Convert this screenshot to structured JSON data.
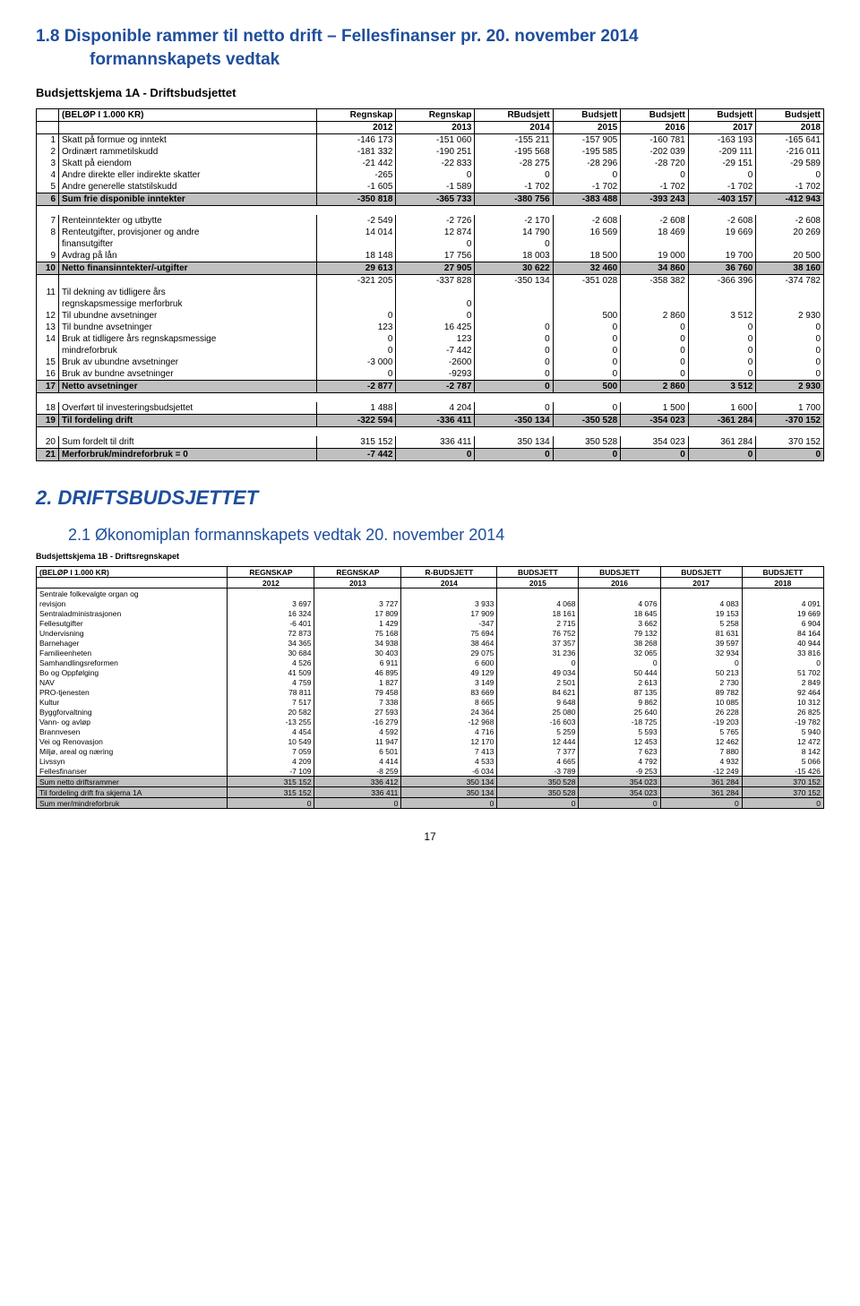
{
  "section1": {
    "title_line1": "1.8 Disponible rammer til netto drift – Fellesfinanser pr. 20. november 2014",
    "title_line2": "formannskapets vedtak",
    "subhead": "Budsjettskjema 1A - Driftsbudsjettet",
    "unit_note": "(BELØP I 1.000 KR)",
    "col_headers_top": [
      "Regnskap",
      "Regnskap",
      "RBudsjett",
      "Budsjett",
      "Budsjett",
      "Budsjett",
      "Budsjett"
    ],
    "col_headers_years": [
      "2012",
      "2013",
      "2014",
      "2015",
      "2016",
      "2017",
      "2018"
    ],
    "rows_a": [
      {
        "n": "1",
        "label": "Skatt på formue og inntekt",
        "v": [
          "-146 173",
          "-151 060",
          "-155 211",
          "-157 905",
          "-160 781",
          "-163 193",
          "-165 641"
        ]
      },
      {
        "n": "2",
        "label": "Ordinært rammetilskudd",
        "v": [
          "-181 332",
          "-190 251",
          "-195 568",
          "-195 585",
          "-202 039",
          "-209 111",
          "-216 011"
        ]
      },
      {
        "n": "3",
        "label": "Skatt på eiendom",
        "v": [
          "-21 442",
          "-22 833",
          "-28 275",
          "-28 296",
          "-28 720",
          "-29 151",
          "-29 589"
        ]
      },
      {
        "n": "4",
        "label": "Andre direkte eller indirekte skatter",
        "v": [
          "-265",
          "0",
          "0",
          "0",
          "0",
          "0",
          "0"
        ]
      },
      {
        "n": "5",
        "label": "Andre generelle statstilskudd",
        "v": [
          "-1 605",
          "-1 589",
          "-1 702",
          "-1 702",
          "-1 702",
          "-1 702",
          "-1 702"
        ]
      }
    ],
    "row_sum6": {
      "n": "6",
      "label": "Sum frie disponible inntekter",
      "v": [
        "-350 818",
        "-365 733",
        "-380 756",
        "-383 488",
        "-393 243",
        "-403 157",
        "-412 943"
      ]
    },
    "rows_b": [
      {
        "n": "7",
        "label": "Renteinntekter og utbytte",
        "v": [
          "-2 549",
          "-2 726",
          "-2 170",
          "-2 608",
          "-2 608",
          "-2 608",
          "-2 608"
        ]
      },
      {
        "n": "8",
        "label": "Renteutgifter, provisjoner og andre",
        "v": [
          "14 014",
          "12 874",
          "14 790",
          "16 569",
          "18 469",
          "19 669",
          "20 269"
        ]
      },
      {
        "n": "",
        "label": "finansutgifter",
        "v": [
          "",
          "0",
          "0",
          "",
          "",
          "",
          ""
        ]
      },
      {
        "n": "9",
        "label": "Avdrag på lån",
        "v": [
          "18 148",
          "17 756",
          "18 003",
          "18 500",
          "19 000",
          "19 700",
          "20 500"
        ]
      }
    ],
    "row_sum10": {
      "n": "10",
      "label": "Netto finansinntekter/-utgifter",
      "v": [
        "29 613",
        "27 905",
        "30 622",
        "32 460",
        "34 860",
        "36 760",
        "38 160"
      ]
    },
    "row_extra": {
      "v": [
        "-321 205",
        "-337 828",
        "-350 134",
        "-351 028",
        "-358 382",
        "-366 396",
        "-374 782"
      ]
    },
    "rows_c": [
      {
        "n": "11",
        "label": "Til dekning av tidligere års",
        "v": [
          "",
          "",
          "",
          "",
          "",
          "",
          ""
        ]
      },
      {
        "n": "",
        "label": "regnskapsmessige merforbruk",
        "v": [
          "",
          "0",
          "",
          "",
          "",
          "",
          ""
        ]
      },
      {
        "n": "12",
        "label": "Til ubundne avsetninger",
        "v": [
          "",
          "0",
          "0",
          "",
          "500",
          "2 860",
          "3 512",
          "2 930"
        ],
        "skip": true
      },
      {
        "n": "12",
        "label": "Til ubundne avsetninger",
        "v": [
          "0",
          "0",
          "",
          "500",
          "2 860",
          "3 512",
          "2 930"
        ]
      },
      {
        "n": "13",
        "label": "Til bundne avsetninger",
        "v": [
          "123",
          "16 425",
          "0",
          "0",
          "0",
          "0",
          "0"
        ]
      },
      {
        "n": "14",
        "label": "Bruk at tidligere års regnskapsmessige",
        "v": [
          "0",
          "123",
          "0",
          "0",
          "0",
          "0",
          "0"
        ]
      },
      {
        "n": "",
        "label": "mindreforbruk",
        "v": [
          "0",
          "-7 442",
          "0",
          "0",
          "0",
          "0",
          "0"
        ]
      },
      {
        "n": "15",
        "label": "Bruk av ubundne avsetninger",
        "v": [
          "-3 000",
          "-2600",
          "0",
          "0",
          "0",
          "0",
          "0"
        ]
      },
      {
        "n": "16",
        "label": "Bruk av bundne avsetninger",
        "v": [
          "0",
          "-9293",
          "0",
          "0",
          "0",
          "0",
          "0"
        ]
      }
    ],
    "row_sum17": {
      "n": "17",
      "label": "Netto avsetninger",
      "v": [
        "-2 877",
        "-2 787",
        "0",
        "500",
        "2 860",
        "3 512",
        "2 930"
      ]
    },
    "rows_d": [
      {
        "n": "18",
        "label": "Overført til investeringsbudsjettet",
        "v": [
          "1 488",
          "4 204",
          "0",
          "0",
          "1 500",
          "1 600",
          "1 700"
        ]
      }
    ],
    "row_sum19": {
      "n": "19",
      "label": "Til fordeling drift",
      "v": [
        "-322 594",
        "-336 411",
        "-350 134",
        "-350 528",
        "-354 023",
        "-361 284",
        "-370 152"
      ]
    },
    "rows_e": [
      {
        "n": "20",
        "label": "Sum fordelt til drift",
        "v": [
          "315 152",
          "336 411",
          "350 134",
          "350 528",
          "354 023",
          "361 284",
          "370 152"
        ]
      }
    ],
    "row_sum21": {
      "n": "21",
      "label": "Merforbruk/mindreforbruk = 0",
      "v": [
        "-7 442",
        "0",
        "0",
        "0",
        "0",
        "0",
        "0"
      ]
    }
  },
  "section2": {
    "title_big": "2.   DRIFTSBUDSJETTET",
    "subtitle": "2.1   Økonomiplan formannskapets vedtak 20. november 2014",
    "subhead": "Budsjettskjema 1B - Driftsregnskapet",
    "unit_note": "(BELØP I 1.000 KR)",
    "col_headers_top": [
      "REGNSKAP",
      "REGNSKAP",
      "R-BUDSJETT",
      "BUDSJETT",
      "BUDSJETT",
      "BUDSJETT",
      "BUDSJETT"
    ],
    "col_headers_years": [
      "2012",
      "2013",
      "2014",
      "2015",
      "2016",
      "2017",
      "2018"
    ],
    "rows": [
      {
        "label": "Sentrale folkevalgte organ og",
        "v": [
          "",
          "",
          "",
          "",
          "",
          "",
          ""
        ]
      },
      {
        "label": "revisjon",
        "v": [
          "3 697",
          "3 727",
          "3 933",
          "4 068",
          "4 076",
          "4 083",
          "4 091"
        ]
      },
      {
        "label": "Sentraladministrasjonen",
        "v": [
          "16 324",
          "17 809",
          "17 909",
          "18 161",
          "18 645",
          "19 153",
          "19 669"
        ]
      },
      {
        "label": "Fellesutgifter",
        "v": [
          "-6 401",
          "1 429",
          "-347",
          "2 715",
          "3 662",
          "5 258",
          "6 904"
        ]
      },
      {
        "label": "Undervisning",
        "v": [
          "72 873",
          "75 168",
          "75 694",
          "76 752",
          "79 132",
          "81 631",
          "84 164"
        ]
      },
      {
        "label": "Barnehager",
        "v": [
          "34 365",
          "34 938",
          "38 464",
          "37 357",
          "38 268",
          "39 597",
          "40 944"
        ]
      },
      {
        "label": "Familieenheten",
        "v": [
          "30 684",
          "30 403",
          "29 075",
          "31 236",
          "32 065",
          "32 934",
          "33 816"
        ]
      },
      {
        "label": "Samhandlingsreformen",
        "v": [
          "4 526",
          "6 911",
          "6 600",
          "0",
          "0",
          "0",
          "0"
        ]
      },
      {
        "label": "Bo og Oppfølging",
        "v": [
          "41 509",
          "46 895",
          "49 129",
          "49 034",
          "50 444",
          "50 213",
          "51 702"
        ]
      },
      {
        "label": "NAV",
        "v": [
          "4 759",
          "1 827",
          "3 149",
          "2 501",
          "2 613",
          "2 730",
          "2 849"
        ]
      },
      {
        "label": "PRO-tjenesten",
        "v": [
          "78 811",
          "79 458",
          "83 669",
          "84 621",
          "87 135",
          "89 782",
          "92 464"
        ]
      },
      {
        "label": "Kultur",
        "v": [
          "7 517",
          "7 338",
          "8 665",
          "9 648",
          "9 862",
          "10 085",
          "10 312"
        ]
      },
      {
        "label": "Byggforvaltning",
        "v": [
          "20 582",
          "27 593",
          "24 364",
          "25 080",
          "25 640",
          "26 228",
          "26 825"
        ]
      },
      {
        "label": "Vann- og avløp",
        "v": [
          "-13 255",
          "-16 279",
          "-12 968",
          "-16 603",
          "-18 725",
          "-19 203",
          "-19 782"
        ]
      },
      {
        "label": "Brannvesen",
        "v": [
          "4 454",
          "4 592",
          "4 716",
          "5 259",
          "5 593",
          "5 765",
          "5 940"
        ]
      },
      {
        "label": "Vei og Renovasjon",
        "v": [
          "10 549",
          "11 947",
          "12 170",
          "12 444",
          "12 453",
          "12 462",
          "12 472"
        ]
      },
      {
        "label": "Miljø, areal og næring",
        "v": [
          "7 059",
          "6 501",
          "7 413",
          "7 377",
          "7 623",
          "7 880",
          "8 142"
        ]
      },
      {
        "label": "Livssyn",
        "v": [
          "4 209",
          "4 414",
          "4 533",
          "4 665",
          "4 792",
          "4 932",
          "5 066"
        ]
      },
      {
        "label": "Fellesfinanser",
        "v": [
          "-7 109",
          "-8 259",
          "-6 034",
          "-3 789",
          "-9 253",
          "-12 249",
          "-15 426"
        ]
      }
    ],
    "sum_rows": [
      {
        "label": "Sum netto driftsrammer",
        "v": [
          "315 152",
          "336 412",
          "350 134",
          "350 528",
          "354 023",
          "361 284",
          "370 152"
        ]
      },
      {
        "label": "Til fordeling drift fra skjema 1A",
        "v": [
          "315 152",
          "336 411",
          "350 134",
          "350 528",
          "354 023",
          "361 284",
          "370 152"
        ]
      },
      {
        "label": "Sum mer/mindreforbruk",
        "v": [
          "0",
          "0",
          "0",
          "0",
          "0",
          "0",
          "0"
        ]
      }
    ]
  },
  "page_number": "17"
}
